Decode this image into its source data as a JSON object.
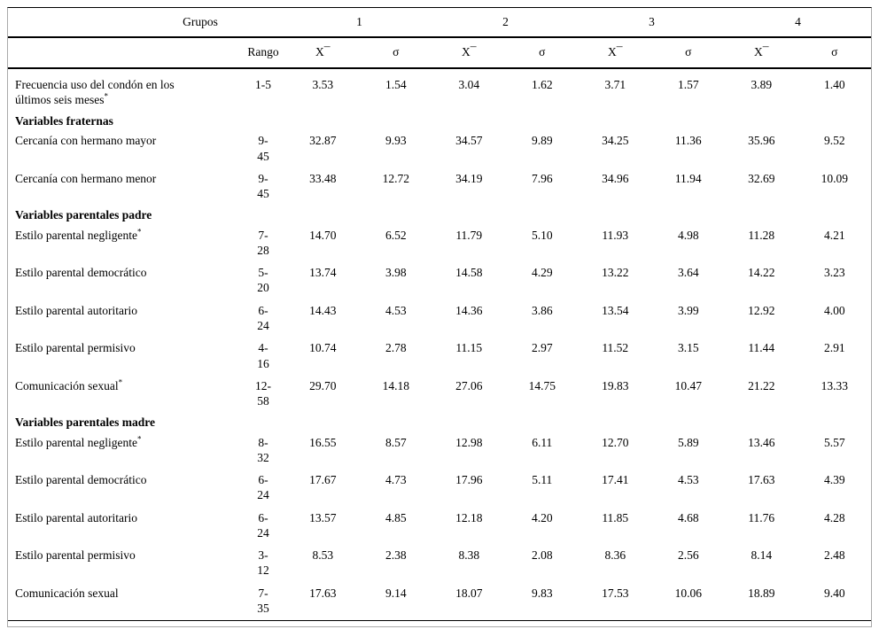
{
  "colors": {
    "text": "#000000",
    "background": "#ffffff",
    "rule": "#000000"
  },
  "table": {
    "header": {
      "grupos_label": "Grupos",
      "group_numbers": [
        "1",
        "2",
        "3",
        "4"
      ],
      "rango_label": "Rango",
      "mean_label": "X¯",
      "sd_label": "σ"
    },
    "rows": [
      {
        "type": "data",
        "label": "Frecuencia uso del condón en los últimos seis meses",
        "note": "*",
        "rango": [
          "1-5",
          ""
        ],
        "values": [
          "3.53",
          "1.54",
          "3.04",
          "1.62",
          "3.71",
          "1.57",
          "3.89",
          "1.40"
        ]
      },
      {
        "type": "section",
        "label": "Variables fraternas"
      },
      {
        "type": "data",
        "label": "Cercanía con hermano mayor",
        "note": "",
        "rango": [
          "9-",
          "45"
        ],
        "values": [
          "32.87",
          "9.93",
          "34.57",
          "9.89",
          "34.25",
          "11.36",
          "35.96",
          "9.52"
        ]
      },
      {
        "type": "data",
        "label": "Cercanía con hermano menor",
        "note": "",
        "rango": [
          "9-",
          "45"
        ],
        "values": [
          "33.48",
          "12.72",
          "34.19",
          "7.96",
          "34.96",
          "11.94",
          "32.69",
          "10.09"
        ]
      },
      {
        "type": "section",
        "label": "Variables parentales padre"
      },
      {
        "type": "data",
        "label": "Estilo parental negligente",
        "note": "*",
        "rango": [
          "7-",
          "28"
        ],
        "values": [
          "14.70",
          "6.52",
          "11.79",
          "5.10",
          "11.93",
          "4.98",
          "11.28",
          "4.21"
        ]
      },
      {
        "type": "data",
        "label": "Estilo parental democrático",
        "note": "",
        "rango": [
          "5-",
          "20"
        ],
        "values": [
          "13.74",
          "3.98",
          "14.58",
          "4.29",
          "13.22",
          "3.64",
          "14.22",
          "3.23"
        ]
      },
      {
        "type": "data",
        "label": "Estilo parental autoritario",
        "note": "",
        "rango": [
          "6-",
          "24"
        ],
        "values": [
          "14.43",
          "4.53",
          "14.36",
          "3.86",
          "13.54",
          "3.99",
          "12.92",
          "4.00"
        ]
      },
      {
        "type": "data",
        "label": "Estilo parental permisivo",
        "note": "",
        "rango": [
          "4-",
          "16"
        ],
        "values": [
          "10.74",
          "2.78",
          "11.15",
          "2.97",
          "11.52",
          "3.15",
          "11.44",
          "2.91"
        ]
      },
      {
        "type": "data",
        "label": "Comunicación sexual",
        "note": "*",
        "rango": [
          "12-",
          "58"
        ],
        "values": [
          "29.70",
          "14.18",
          "27.06",
          "14.75",
          "19.83",
          "10.47",
          "21.22",
          "13.33"
        ]
      },
      {
        "type": "section",
        "label": "Variables parentales madre"
      },
      {
        "type": "data",
        "label": "Estilo parental negligente",
        "note": "*",
        "rango": [
          "8-",
          "32"
        ],
        "values": [
          "16.55",
          "8.57",
          "12.98",
          "6.11",
          "12.70",
          "5.89",
          "13.46",
          "5.57"
        ]
      },
      {
        "type": "data",
        "label": "Estilo parental democrático",
        "note": "",
        "rango": [
          "6-",
          "24"
        ],
        "values": [
          "17.67",
          "4.73",
          "17.96",
          "5.11",
          "17.41",
          "4.53",
          "17.63",
          "4.39"
        ]
      },
      {
        "type": "data",
        "label": "Estilo parental autoritario",
        "note": "",
        "rango": [
          "6-",
          "24"
        ],
        "values": [
          "13.57",
          "4.85",
          "12.18",
          "4.20",
          "11.85",
          "4.68",
          "11.76",
          "4.28"
        ]
      },
      {
        "type": "data",
        "label": "Estilo parental permisivo",
        "note": "",
        "rango": [
          "3-",
          "12"
        ],
        "values": [
          "8.53",
          "2.38",
          "8.38",
          "2.08",
          "8.36",
          "2.56",
          "8.14",
          "2.48"
        ]
      },
      {
        "type": "data",
        "label": "Comunicación sexual",
        "note": "",
        "rango": [
          "7-",
          "35"
        ],
        "values": [
          "17.63",
          "9.14",
          "18.07",
          "9.83",
          "17.53",
          "10.06",
          "18.89",
          "9.40"
        ]
      }
    ]
  }
}
